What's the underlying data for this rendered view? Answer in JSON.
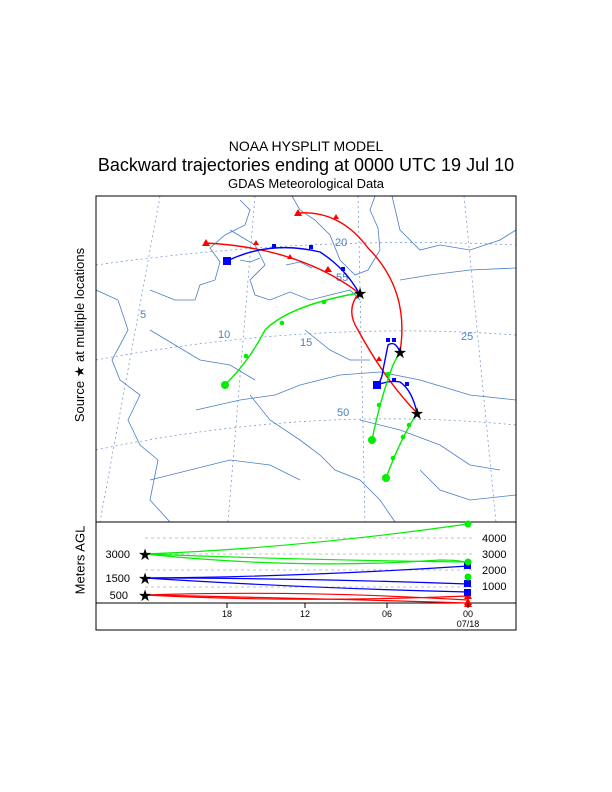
{
  "header": {
    "model": "NOAA HYSPLIT MODEL",
    "title": "Backward trajectories ending at 0000 UTC 19 Jul 10",
    "subtitle": "GDAS Meteorological Data"
  },
  "map": {
    "side_label_prefix": "Source",
    "side_label_suffix": "at multiple locations",
    "source_symbol": "★",
    "longitude_labels": [
      "5",
      "10",
      "15",
      "20",
      "25"
    ],
    "latitude_labels": [
      "55",
      "50"
    ]
  },
  "height_panel": {
    "ylabel": "Meters AGL",
    "left_levels": [
      "3000",
      "1500",
      "500"
    ],
    "right_levels": [
      "4000",
      "3000",
      "2000",
      "1000"
    ],
    "time_labels": [
      "18",
      "12",
      "06",
      "00"
    ],
    "date_label": "07/18"
  },
  "colors": {
    "red": "#ff0000",
    "blue": "#0000ff",
    "green": "#00ee00",
    "grid": "#6a8fc9",
    "coast": "#4a7fc4"
  },
  "trajectories": [
    {
      "color": "red",
      "start": "triangle",
      "endpoint": "star"
    },
    {
      "color": "blue",
      "start": "square",
      "endpoint": "star"
    },
    {
      "color": "green",
      "start": "circle",
      "endpoint": "star"
    }
  ]
}
